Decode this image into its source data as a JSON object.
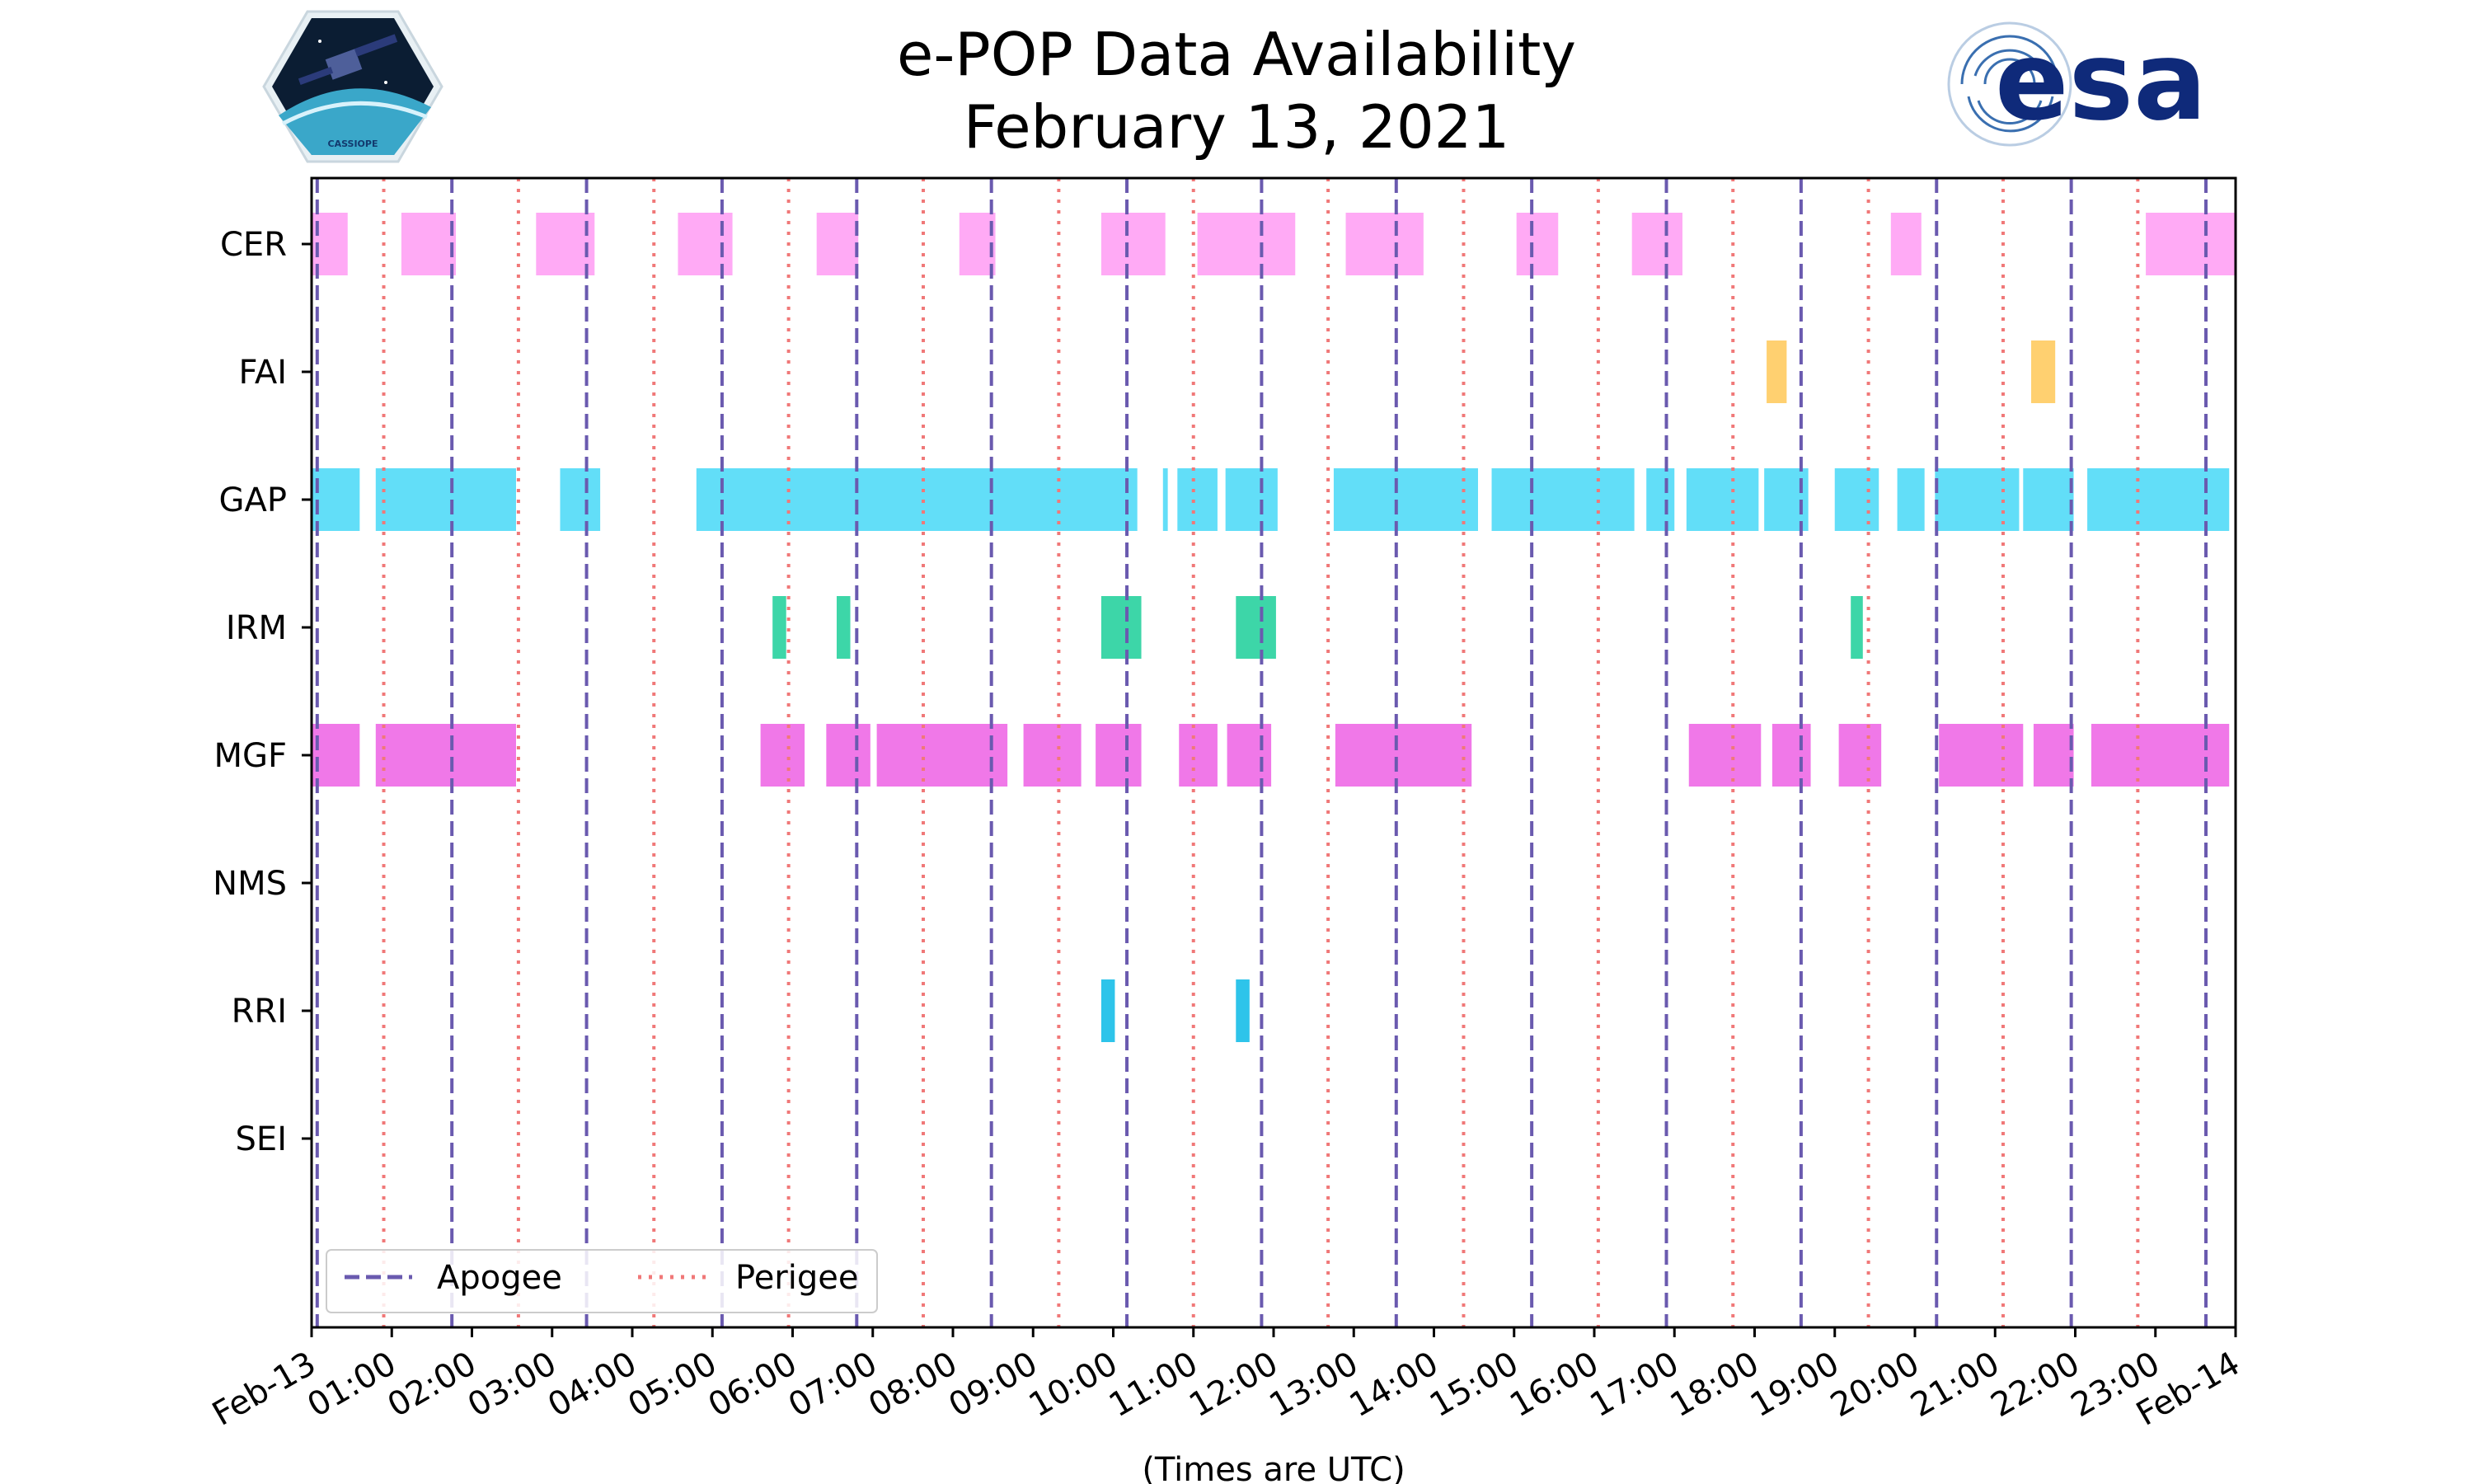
{
  "title_line1": "e-POP Data Availability",
  "title_line2": "February 13, 2021",
  "logos": {
    "cassiope": "CASSIOPE",
    "esa": "esa"
  },
  "colors": {
    "apogee": "#6a5aaf",
    "perigee": "#f07878",
    "CER": "#ffaaf5",
    "FAI": "#ffd070",
    "GAP": "#62def8",
    "IRM": "#3dd6a8",
    "MGF": "#f078e8",
    "NMS": "#cccccc",
    "RRI": "#2ec4ea",
    "SEI": "#cccccc"
  },
  "chart_data": {
    "type": "timeline",
    "title": "e-POP Data Availability\nFebruary 13, 2021",
    "xlabel": "(Times are UTC)",
    "xlim": [
      0,
      24
    ],
    "x_ticks": [
      "Feb-13",
      "01:00",
      "02:00",
      "03:00",
      "04:00",
      "05:00",
      "06:00",
      "07:00",
      "08:00",
      "09:00",
      "10:00",
      "11:00",
      "12:00",
      "13:00",
      "14:00",
      "15:00",
      "16:00",
      "17:00",
      "18:00",
      "19:00",
      "20:00",
      "21:00",
      "22:00",
      "23:00",
      "Feb-14"
    ],
    "instruments": [
      "CER",
      "FAI",
      "GAP",
      "IRM",
      "MGF",
      "NMS",
      "RRI",
      "SEI"
    ],
    "legend": [
      {
        "name": "Apogee",
        "style": "dashed"
      },
      {
        "name": "Perigee",
        "style": "dotted"
      }
    ],
    "apogee_hours": [
      0.07,
      1.75,
      3.43,
      5.12,
      6.8,
      8.48,
      10.17,
      11.85,
      13.53,
      15.22,
      16.9,
      18.58,
      20.27,
      21.95,
      23.63
    ],
    "perigee_hours": [
      0.9,
      2.58,
      4.27,
      5.95,
      7.63,
      9.32,
      11.0,
      12.68,
      14.37,
      16.05,
      17.73,
      19.42,
      21.1,
      22.78
    ],
    "intervals": {
      "CER": [
        [
          0.0,
          0.45
        ],
        [
          1.12,
          1.8
        ],
        [
          2.8,
          3.53
        ],
        [
          4.57,
          5.25
        ],
        [
          6.3,
          6.82
        ],
        [
          8.08,
          8.53
        ],
        [
          9.85,
          10.65
        ],
        [
          11.05,
          12.27
        ],
        [
          12.9,
          13.87
        ],
        [
          15.03,
          15.55
        ],
        [
          16.47,
          17.1
        ],
        [
          19.7,
          20.08
        ],
        [
          22.88,
          24.0
        ]
      ],
      "FAI": [
        [
          18.15,
          18.4
        ],
        [
          21.45,
          21.75
        ]
      ],
      "GAP": [
        [
          0.0,
          0.6
        ],
        [
          0.8,
          2.55
        ],
        [
          3.1,
          3.6
        ],
        [
          4.8,
          10.3
        ],
        [
          10.62,
          10.68
        ],
        [
          10.8,
          11.3
        ],
        [
          11.4,
          12.05
        ],
        [
          12.75,
          14.55
        ],
        [
          14.72,
          16.5
        ],
        [
          16.65,
          17.0
        ],
        [
          17.15,
          18.05
        ],
        [
          18.12,
          18.67
        ],
        [
          19.0,
          19.55
        ],
        [
          19.78,
          20.12
        ],
        [
          20.25,
          21.3
        ],
        [
          21.35,
          21.98
        ],
        [
          22.15,
          23.92
        ]
      ],
      "IRM": [
        [
          5.75,
          5.92
        ],
        [
          6.55,
          6.72
        ],
        [
          9.85,
          10.35
        ],
        [
          11.53,
          12.03
        ],
        [
          19.2,
          19.35
        ]
      ],
      "MGF": [
        [
          0.0,
          0.6
        ],
        [
          0.8,
          2.55
        ],
        [
          5.6,
          6.15
        ],
        [
          6.42,
          6.97
        ],
        [
          7.05,
          8.68
        ],
        [
          8.88,
          9.6
        ],
        [
          9.78,
          10.35
        ],
        [
          10.82,
          11.3
        ],
        [
          11.42,
          11.97
        ],
        [
          12.77,
          14.47
        ],
        [
          17.18,
          18.08
        ],
        [
          18.22,
          18.7
        ],
        [
          19.05,
          19.58
        ],
        [
          20.3,
          21.35
        ],
        [
          21.48,
          21.98
        ],
        [
          22.2,
          23.92
        ]
      ],
      "NMS": [],
      "RRI": [
        [
          9.85,
          10.02
        ],
        [
          11.53,
          11.7
        ]
      ],
      "SEI": []
    }
  }
}
